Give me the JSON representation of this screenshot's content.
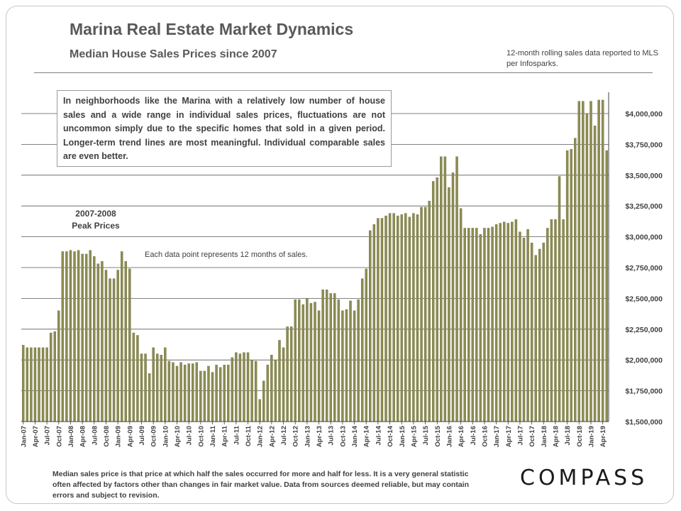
{
  "title": "Marina Real Estate Market Dynamics",
  "subtitle": "Median House Sales Prices since 2007",
  "source_note": "12-month rolling sales data reported to MLS per Infosparks.",
  "annotation_box": "In neighborhoods like the Marina with a relatively low number of house sales and a wide range in individual sales prices, fluctuations are not uncommon simply due to the specific homes that sold in a given period. Longer-term trend lines are most meaningful. Individual comparable sales are even better.",
  "peak_label_line1": "2007-2008",
  "peak_label_line2": "Peak Prices",
  "each_point_note": "Each data point represents 12 months of sales.",
  "footer_note": "Median sales price is that price at which half the sales occurred for more and half for less. It is a very general statistic often affected by factors other than changes in fair market value. Data from sources deemed reliable, but may contain errors and subject to revision.",
  "logo_text": "COMPASS",
  "colors": {
    "bar": "#8c8c52",
    "bar_stroke": "#6f6f3e",
    "grid": "#595959",
    "text": "#404040"
  },
  "chart_data": {
    "type": "bar",
    "title": "Median House Sales Prices since 2007",
    "ylabel": "",
    "xlabel": "",
    "ylim": [
      1500000,
      4100000
    ],
    "y_ticks": [
      1500000,
      1750000,
      2000000,
      2250000,
      2500000,
      2750000,
      3000000,
      3250000,
      3500000,
      3750000,
      4000000
    ],
    "y_tick_labels": [
      "$1,500,000",
      "$1,750,000",
      "$2,000,000",
      "$2,250,000",
      "$2,500,000",
      "$2,750,000",
      "$3,000,000",
      "$3,250,000",
      "$3,500,000",
      "$3,750,000",
      "$4,000,000"
    ],
    "x_tick_labels": [
      "Jan-07",
      "Apr-07",
      "Jul-07",
      "Oct-07",
      "Jan-08",
      "Apr-08",
      "Jul-08",
      "Oct-08",
      "Jan-09",
      "Apr-09",
      "Jul-09",
      "Oct-09",
      "Jan-10",
      "Apr-10",
      "Jul-10",
      "Oct-10",
      "Jan-11",
      "Apr-11",
      "Jul-11",
      "Oct-11",
      "Jan-12",
      "Apr-12",
      "Jul-12",
      "Oct-12",
      "Jan-13",
      "Apr-13",
      "Jul-13",
      "Oct-13",
      "Jan-14",
      "Apr-14",
      "Jul-14",
      "Oct-14",
      "Jan-15",
      "Apr-15",
      "Jul-15",
      "Oct-15",
      "Jan-16",
      "Apr-16",
      "Jul-16",
      "Oct-16",
      "Jan-17",
      "Apr-17",
      "Jul-17",
      "Oct-17",
      "Jan-18",
      "Apr-18",
      "Jul-18",
      "Oct-18",
      "Jan-19",
      "Apr-19"
    ],
    "x_start": "Jan-07",
    "x_interval_months": 1,
    "values": [
      2120000,
      2100000,
      2100000,
      2100000,
      2100000,
      2100000,
      2100000,
      2220000,
      2230000,
      2400000,
      2880000,
      2880000,
      2890000,
      2880000,
      2890000,
      2860000,
      2860000,
      2890000,
      2840000,
      2780000,
      2800000,
      2730000,
      2660000,
      2660000,
      2730000,
      2880000,
      2800000,
      2740000,
      2220000,
      2200000,
      2050000,
      2050000,
      1890000,
      2100000,
      2050000,
      2040000,
      2100000,
      1990000,
      1980000,
      1950000,
      1980000,
      1960000,
      1970000,
      1970000,
      1980000,
      1910000,
      1910000,
      1950000,
      1900000,
      1960000,
      1940000,
      1960000,
      1960000,
      2020000,
      2060000,
      2050000,
      2060000,
      2060000,
      2000000,
      1990000,
      1680000,
      1830000,
      1960000,
      2040000,
      2000000,
      2160000,
      2100000,
      2270000,
      2270000,
      2490000,
      2490000,
      2450000,
      2500000,
      2460000,
      2470000,
      2400000,
      2570000,
      2570000,
      2540000,
      2540000,
      2490000,
      2400000,
      2410000,
      2480000,
      2400000,
      2490000,
      2660000,
      2740000,
      3050000,
      3100000,
      3150000,
      3150000,
      3170000,
      3190000,
      3190000,
      3170000,
      3180000,
      3190000,
      3160000,
      3190000,
      3180000,
      3240000,
      3240000,
      3290000,
      3450000,
      3480000,
      3650000,
      3650000,
      3400000,
      3520000,
      3650000,
      3230000,
      3070000,
      3070000,
      3070000,
      3070000,
      3020000,
      3070000,
      3070000,
      3080000,
      3100000,
      3110000,
      3120000,
      3110000,
      3120000,
      3140000,
      3040000,
      2990000,
      3060000,
      2950000,
      2850000,
      2900000,
      2950000,
      3070000,
      3140000,
      3140000,
      3490000,
      3140000,
      3700000,
      3710000,
      3800000,
      4100000,
      4100000,
      4000000,
      4100000,
      3900000,
      4110000,
      4110000,
      3700000
    ]
  }
}
